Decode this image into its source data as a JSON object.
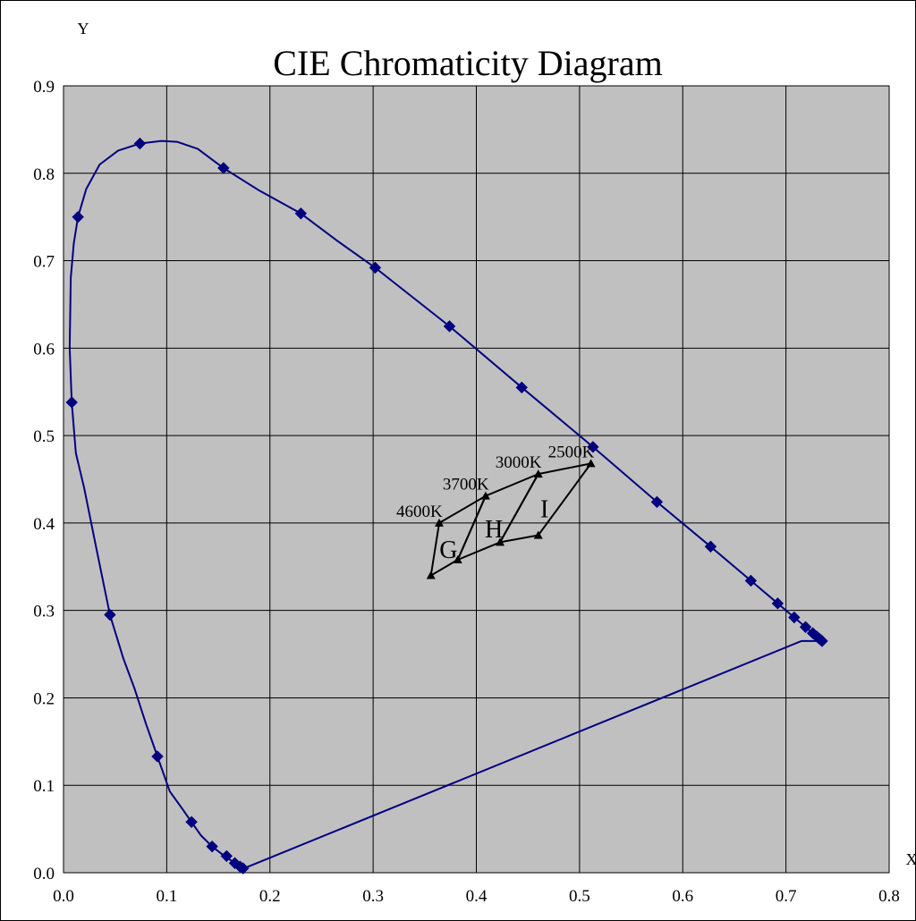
{
  "chart_data": {
    "type": "scatter",
    "title": "CIE Chromaticity Diagram",
    "xlabel": "X",
    "ylabel": "Y",
    "xlim": [
      0.0,
      0.8
    ],
    "ylim": [
      0.0,
      0.9
    ],
    "x_ticks": [
      "0.0",
      "0.1",
      "0.2",
      "0.3",
      "0.4",
      "0.5",
      "0.6",
      "0.7",
      "0.8"
    ],
    "y_ticks": [
      "0.0",
      "0.1",
      "0.2",
      "0.3",
      "0.4",
      "0.5",
      "0.6",
      "0.7",
      "0.8",
      "0.9"
    ],
    "grid": true,
    "plot_background": "#c0c0c0",
    "series": [
      {
        "marker": "diamond",
        "color": "#000080",
        "points": [
          [
            0.174,
            0.005
          ],
          [
            0.171,
            0.007
          ],
          [
            0.166,
            0.011
          ],
          [
            0.158,
            0.019
          ],
          [
            0.144,
            0.03
          ],
          [
            0.124,
            0.058
          ],
          [
            0.091,
            0.133
          ],
          [
            0.045,
            0.295
          ],
          [
            0.008,
            0.538
          ],
          [
            0.014,
            0.75
          ],
          [
            0.074,
            0.834
          ],
          [
            0.155,
            0.806
          ],
          [
            0.23,
            0.754
          ],
          [
            0.302,
            0.692
          ],
          [
            0.374,
            0.625
          ],
          [
            0.444,
            0.555
          ],
          [
            0.513,
            0.487
          ],
          [
            0.575,
            0.424
          ],
          [
            0.627,
            0.373
          ],
          [
            0.666,
            0.334
          ],
          [
            0.692,
            0.308
          ],
          [
            0.708,
            0.292
          ],
          [
            0.719,
            0.281
          ],
          [
            0.726,
            0.274
          ],
          [
            0.73,
            0.27
          ],
          [
            0.732,
            0.268
          ],
          [
            0.734,
            0.266
          ],
          [
            0.735,
            0.265
          ]
        ]
      },
      {
        "marker": "none",
        "color": "#000080",
        "points": [
          [
            0.175,
            0.005
          ],
          [
            0.166,
            0.011
          ],
          [
            0.155,
            0.02
          ],
          [
            0.144,
            0.03
          ],
          [
            0.133,
            0.043
          ],
          [
            0.124,
            0.058
          ],
          [
            0.114,
            0.075
          ],
          [
            0.103,
            0.093
          ],
          [
            0.091,
            0.133
          ],
          [
            0.08,
            0.17
          ],
          [
            0.069,
            0.21
          ],
          [
            0.058,
            0.245
          ],
          [
            0.045,
            0.295
          ],
          [
            0.032,
            0.37
          ],
          [
            0.02,
            0.44
          ],
          [
            0.012,
            0.48
          ],
          [
            0.008,
            0.538
          ],
          [
            0.006,
            0.6
          ],
          [
            0.007,
            0.68
          ],
          [
            0.01,
            0.72
          ],
          [
            0.014,
            0.75
          ],
          [
            0.022,
            0.782
          ],
          [
            0.035,
            0.81
          ],
          [
            0.053,
            0.826
          ],
          [
            0.074,
            0.834
          ],
          [
            0.095,
            0.837
          ],
          [
            0.11,
            0.836
          ],
          [
            0.13,
            0.828
          ],
          [
            0.155,
            0.806
          ],
          [
            0.19,
            0.78
          ],
          [
            0.23,
            0.754
          ],
          [
            0.265,
            0.723
          ],
          [
            0.302,
            0.692
          ],
          [
            0.374,
            0.625
          ],
          [
            0.444,
            0.555
          ],
          [
            0.513,
            0.487
          ],
          [
            0.575,
            0.424
          ],
          [
            0.627,
            0.373
          ],
          [
            0.666,
            0.334
          ],
          [
            0.692,
            0.308
          ],
          [
            0.708,
            0.292
          ],
          [
            0.719,
            0.281
          ],
          [
            0.726,
            0.274
          ],
          [
            0.73,
            0.27
          ],
          [
            0.735,
            0.265
          ],
          [
            0.715,
            0.265
          ],
          [
            0.175,
            0.005
          ]
        ]
      },
      {
        "marker": "triangle",
        "color": "#000000",
        "points": [
          [
            0.356,
            0.34
          ],
          [
            0.364,
            0.4
          ],
          [
            0.382,
            0.358
          ],
          [
            0.409,
            0.431
          ],
          [
            0.423,
            0.378
          ],
          [
            0.46,
            0.456
          ],
          [
            0.46,
            0.386
          ],
          [
            0.511,
            0.468
          ]
        ]
      }
    ],
    "quadrangles": [
      {
        "region": "G",
        "points": [
          [
            0.356,
            0.34
          ],
          [
            0.364,
            0.4
          ],
          [
            0.409,
            0.431
          ],
          [
            0.382,
            0.358
          ]
        ]
      },
      {
        "region": "H",
        "points": [
          [
            0.382,
            0.358
          ],
          [
            0.409,
            0.431
          ],
          [
            0.46,
            0.456
          ],
          [
            0.423,
            0.378
          ]
        ]
      },
      {
        "region": "I",
        "points": [
          [
            0.423,
            0.378
          ],
          [
            0.46,
            0.456
          ],
          [
            0.511,
            0.468
          ],
          [
            0.46,
            0.386
          ]
        ]
      }
    ],
    "annotations": [
      {
        "text": "4600K",
        "x": 0.364,
        "y": 0.4
      },
      {
        "text": "3700K",
        "x": 0.409,
        "y": 0.431
      },
      {
        "text": "3000K",
        "x": 0.46,
        "y": 0.456
      },
      {
        "text": "2500K",
        "x": 0.511,
        "y": 0.468
      }
    ],
    "region_labels": [
      {
        "text": "G",
        "x": 0.373,
        "y": 0.37
      },
      {
        "text": "H",
        "x": 0.417,
        "y": 0.394
      },
      {
        "text": "I",
        "x": 0.466,
        "y": 0.417
      }
    ]
  }
}
